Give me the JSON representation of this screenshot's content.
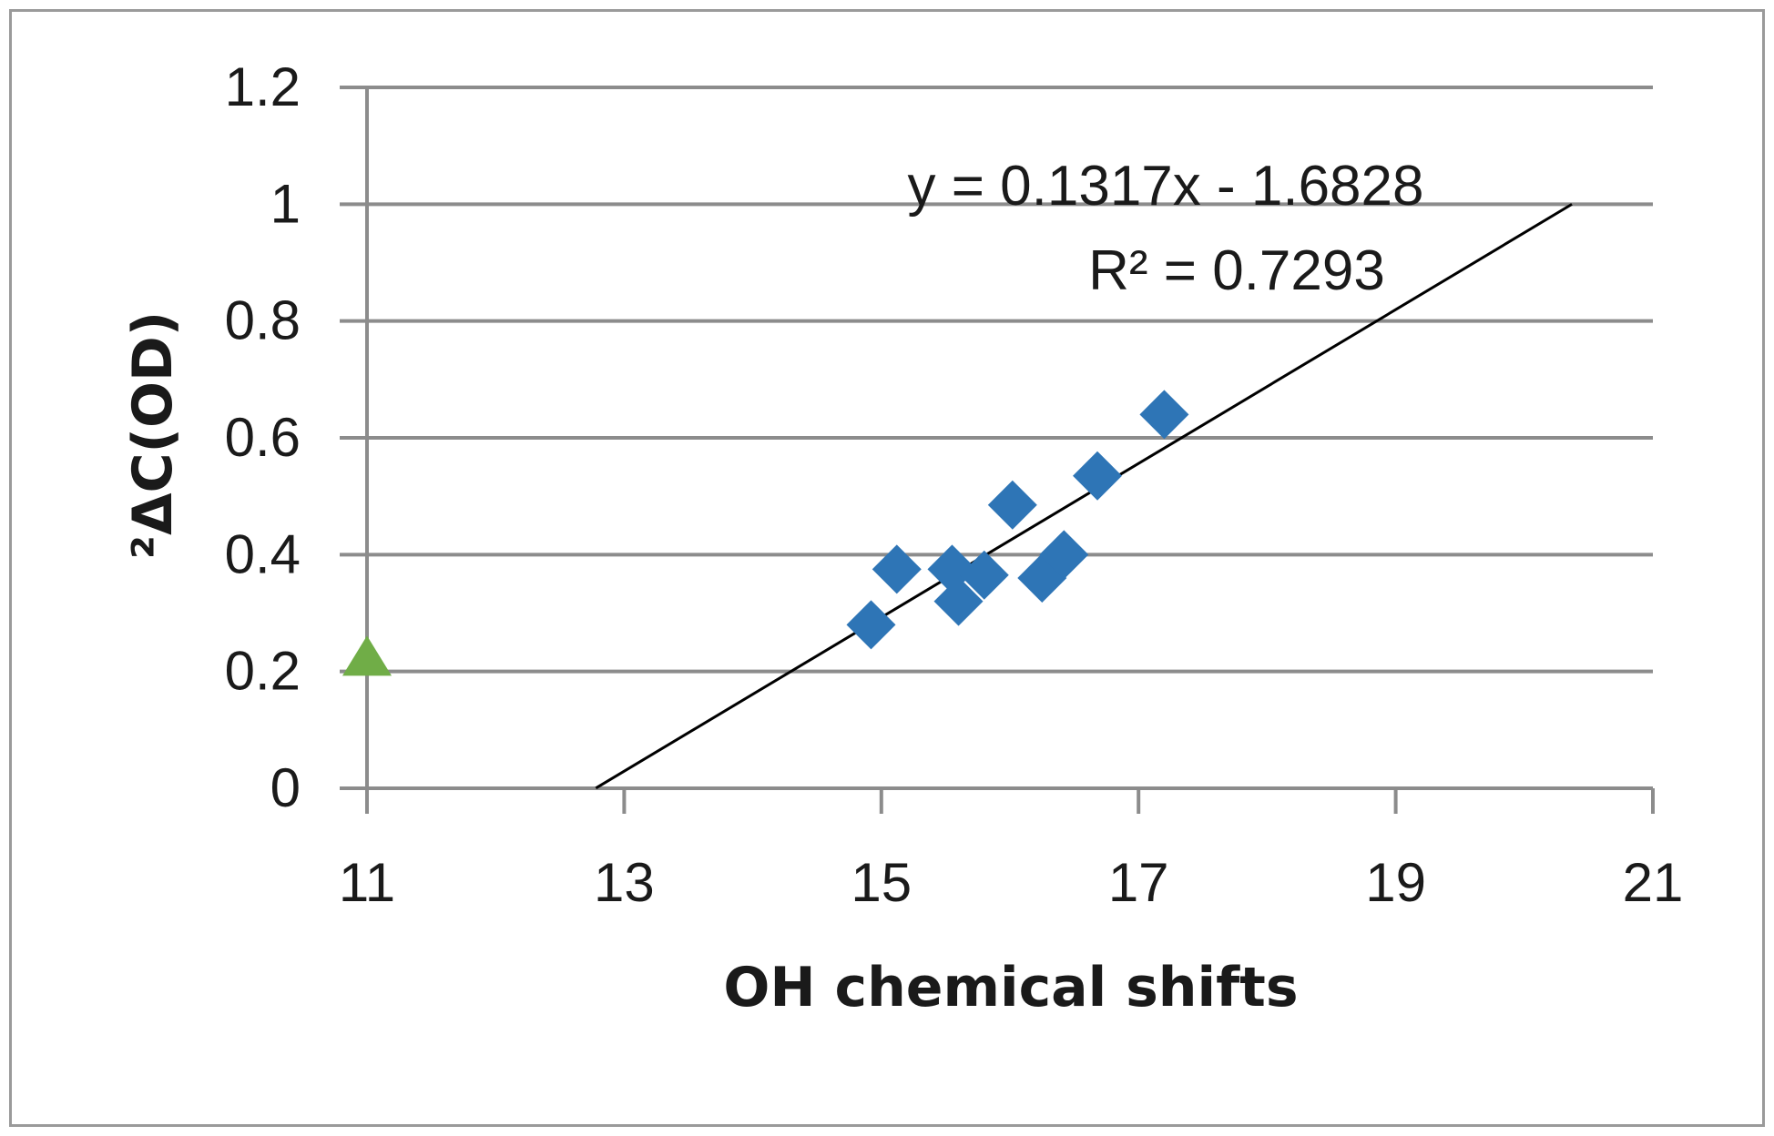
{
  "chart_data": {
    "type": "scatter",
    "title": "",
    "xlabel": "OH chemical shifts",
    "ylabel": "²ΔC(OD)",
    "xlim": [
      11,
      21
    ],
    "ylim": [
      0,
      1.2
    ],
    "x_ticks": [
      "11",
      "13",
      "15",
      "17",
      "19",
      "21"
    ],
    "y_ticks": [
      "0",
      "0.2",
      "0.4",
      "0.6",
      "0.8",
      "1",
      "1.2"
    ],
    "grid": "horizontal",
    "legend": "none",
    "series": [
      {
        "marker": "diamond",
        "color": "#2e75b6",
        "points": [
          {
            "x": 14.92,
            "y": 0.28
          },
          {
            "x": 15.12,
            "y": 0.375
          },
          {
            "x": 15.55,
            "y": 0.375
          },
          {
            "x": 15.6,
            "y": 0.32
          },
          {
            "x": 15.8,
            "y": 0.365
          },
          {
            "x": 16.02,
            "y": 0.485
          },
          {
            "x": 16.25,
            "y": 0.36
          },
          {
            "x": 16.42,
            "y": 0.4
          },
          {
            "x": 16.68,
            "y": 0.535
          },
          {
            "x": 17.2,
            "y": 0.64
          }
        ]
      },
      {
        "marker": "triangle",
        "color": "#70ad47",
        "points": [
          {
            "x": 11.0,
            "y": 0.22
          }
        ]
      }
    ],
    "trendline": {
      "slope": 0.1317,
      "intercept": -1.6828,
      "x_range": [
        12.78,
        20.37
      ],
      "color": "#000000",
      "equation_text": "y = 0.1317x - 1.6828",
      "r2_text": "R² = 0.7293"
    }
  }
}
